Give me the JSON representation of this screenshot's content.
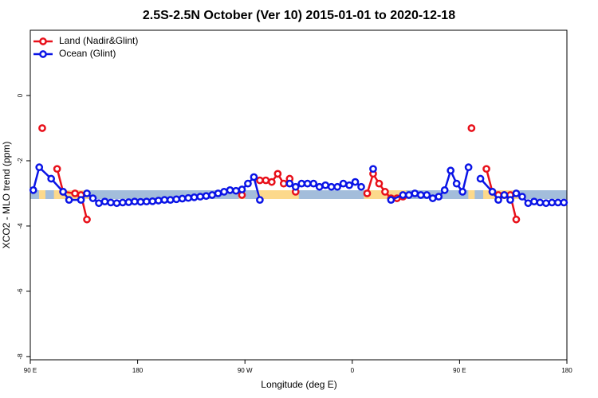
{
  "chart_data": {
    "type": "line",
    "title": "2.5S-2.5N October (Ver 10)   2015-01-01 to 2020-12-18",
    "xlabel": "Longitude (deg E)",
    "ylabel": "XCO2 - MLO trend (ppm)",
    "xlim": [
      90,
      540
    ],
    "ylim": [
      -8.1,
      2
    ],
    "xticks": [
      {
        "value": 90,
        "label": "90 E"
      },
      180,
      {
        "value": 270,
        "label": "90 W"
      },
      {
        "value": 360,
        "label": "0"
      },
      {
        "value": 450,
        "label": "90 E"
      },
      {
        "value": 540,
        "label": "180"
      }
    ],
    "yticks": [
      0,
      -2,
      -4,
      -6,
      -8
    ],
    "legend": "top-left",
    "series": [
      {
        "name": "Land (Nadir&Glint)",
        "color": "#e8101a",
        "x": [
          100,
          106,
          112.5,
          117.5,
          127.5,
          132.5,
          137.5,
          200,
          267.5,
          275,
          282.5,
          287.5,
          292.5,
          297.5,
          302.5,
          307.5,
          312.5,
          340,
          372.5,
          377.5,
          382.5,
          387.5,
          392.5,
          397.5,
          402.5,
          430,
          460,
          466,
          472.5,
          477.5,
          482.5,
          487.5,
          492.5,
          497.5
        ],
        "values": [
          -1.0,
          null,
          -2.25,
          -2.95,
          -3.0,
          -3.05,
          -3.8,
          null,
          -3.05,
          null,
          -2.6,
          -2.6,
          -2.65,
          -2.4,
          -2.7,
          -2.55,
          -2.95,
          null,
          -3.0,
          -2.4,
          -2.7,
          -2.95,
          -3.15,
          -3.15,
          -3.1,
          null,
          -1.0,
          null,
          -2.25,
          -2.95,
          -3.05,
          -3.05,
          -3.05,
          -3.8
        ]
      },
      {
        "name": "Ocean (Glint)",
        "color": "#0a14e6",
        "x": [
          92.5,
          97.5,
          107.5,
          117.5,
          122.5,
          132.5,
          137.5,
          142.5,
          147.5,
          152.5,
          157.5,
          162.5,
          167.5,
          172.5,
          177.5,
          182.5,
          187.5,
          192.5,
          197.5,
          202.5,
          207.5,
          212.5,
          217.5,
          222.5,
          227.5,
          232.5,
          237.5,
          242.5,
          247.5,
          252.5,
          257.5,
          262.5,
          267.5,
          272.5,
          277.5,
          282.5,
          295,
          307.5,
          312.5,
          317.5,
          322.5,
          327.5,
          332.5,
          337.5,
          342.5,
          347.5,
          352.5,
          357.5,
          362.5,
          367.5,
          372.5,
          377.5,
          385,
          392.5,
          402.5,
          407.5,
          412.5,
          417.5,
          422.5,
          427.5,
          432.5,
          437.5,
          442.5,
          447.5,
          452.5,
          457.5,
          462.5,
          467.5,
          477.5,
          482.5,
          487.5,
          492.5,
          497.5,
          502.5,
          507.5,
          512.5,
          517.5,
          522.5,
          527.5,
          532.5,
          537.5
        ],
        "values": [
          -2.9,
          -2.2,
          -2.55,
          -2.95,
          -3.2,
          -3.2,
          -3.0,
          -3.15,
          -3.3,
          -3.25,
          -3.28,
          -3.3,
          -3.28,
          -3.27,
          -3.25,
          -3.26,
          -3.25,
          -3.24,
          -3.22,
          -3.2,
          -3.2,
          -3.18,
          -3.16,
          -3.14,
          -3.12,
          -3.1,
          -3.08,
          -3.05,
          -3.0,
          -2.95,
          -2.9,
          -2.92,
          -2.88,
          -2.7,
          -2.5,
          -3.2,
          null,
          -2.7,
          -2.8,
          -2.7,
          -2.7,
          -2.7,
          -2.8,
          -2.75,
          -2.8,
          -2.8,
          -2.7,
          -2.75,
          -2.65,
          -2.8,
          null,
          -2.25,
          null,
          -3.2,
          -3.05,
          -3.05,
          -3.0,
          -3.05,
          -3.05,
          -3.15,
          -3.1,
          -2.9,
          -2.3,
          -2.7,
          -2.95,
          -2.2,
          null,
          -2.55,
          -2.95,
          -3.2,
          -3.05,
          -3.2,
          -3.0,
          -3.1,
          -3.3,
          -3.25,
          -3.28,
          -3.3,
          -3.28,
          -3.28,
          -3.28
        ]
      }
    ]
  }
}
